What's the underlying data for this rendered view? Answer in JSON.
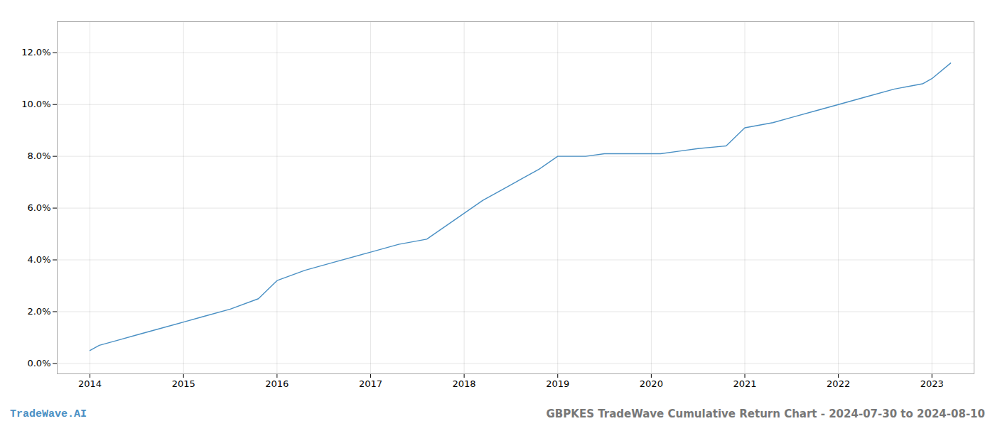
{
  "chart_data": {
    "type": "line",
    "title": "GBPKES TradeWave Cumulative Return Chart - 2024-07-30 to 2024-08-10",
    "annotations": [
      "TradeWave.AI"
    ],
    "x": [
      2014.0,
      2014.1,
      2014.3,
      2014.5,
      2014.7,
      2015.0,
      2015.2,
      2015.5,
      2015.8,
      2016.0,
      2016.3,
      2016.6,
      2017.0,
      2017.3,
      2017.6,
      2018.0,
      2018.2,
      2018.4,
      2018.6,
      2018.8,
      2019.0,
      2019.1,
      2019.3,
      2019.5,
      2019.7,
      2019.9,
      2020.0,
      2020.1,
      2020.3,
      2020.5,
      2020.8,
      2021.0,
      2021.3,
      2021.5,
      2021.8,
      2022.0,
      2022.3,
      2022.6,
      2022.9,
      2023.0,
      2023.2
    ],
    "values": [
      0.005,
      0.007,
      0.009,
      0.011,
      0.013,
      0.016,
      0.018,
      0.021,
      0.025,
      0.032,
      0.036,
      0.039,
      0.043,
      0.046,
      0.048,
      0.058,
      0.063,
      0.067,
      0.071,
      0.075,
      0.08,
      0.08,
      0.08,
      0.081,
      0.081,
      0.081,
      0.081,
      0.081,
      0.082,
      0.083,
      0.084,
      0.091,
      0.093,
      0.095,
      0.098,
      0.1,
      0.103,
      0.106,
      0.108,
      0.11,
      0.116
    ],
    "color": "#4a90c4",
    "xlim": [
      2013.65,
      2023.45
    ],
    "ylim": [
      -0.004,
      0.132
    ],
    "xticks": [
      2014,
      2015,
      2016,
      2017,
      2018,
      2019,
      2020,
      2021,
      2022,
      2023
    ],
    "yticks": [
      {
        "value": 0.0,
        "label": "0.0%"
      },
      {
        "value": 0.02,
        "label": "2.0%"
      },
      {
        "value": 0.04,
        "label": "4.0%"
      },
      {
        "value": 0.06,
        "label": "6.0%"
      },
      {
        "value": 0.08,
        "label": "8.0%"
      },
      {
        "value": 0.1,
        "label": "10.0%"
      },
      {
        "value": 0.12,
        "label": "12.0%"
      }
    ],
    "grid": true
  }
}
